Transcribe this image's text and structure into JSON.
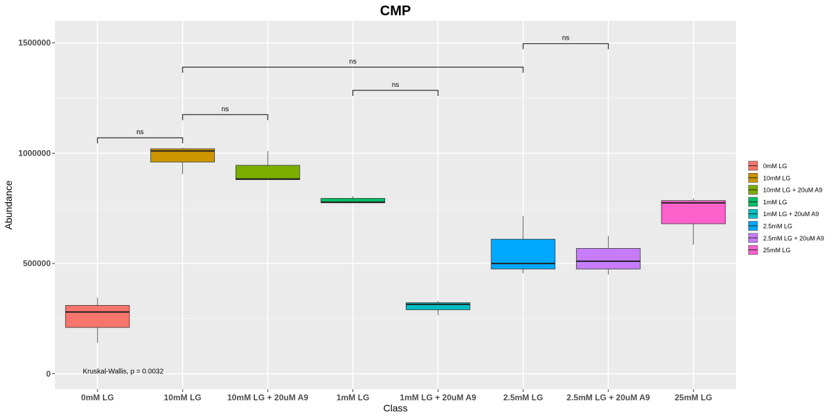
{
  "chart_data": {
    "type": "box",
    "title": "CMP",
    "xlabel": "Class",
    "ylabel": "Abundance",
    "ylim": [
      -70000,
      1600000
    ],
    "yticks": [
      0,
      500000,
      1000000,
      1500000
    ],
    "ytick_labels": [
      "0",
      "500000",
      "1000000",
      "1500000"
    ],
    "categories": [
      "0mM LG",
      "10mM LG",
      "10mM LG + 20uM A9",
      "1mM LG",
      "1mM LG + 20uM A9",
      "2.5mM LG",
      "2.5mM LG + 20uM A9",
      "25mM LG"
    ],
    "boxes": [
      {
        "name": "0mM LG",
        "color": "#F8766D",
        "min": 140000,
        "q1": 210000,
        "median": 280000,
        "q3": 310000,
        "max": 345000
      },
      {
        "name": "10mM LG",
        "color": "#CD9600",
        "min": 905000,
        "q1": 960000,
        "median": 1010000,
        "q3": 1020000,
        "max": 1025000
      },
      {
        "name": "10mM LG + 20uM A9",
        "color": "#7CAE00",
        "min": 880000,
        "q1": 880000,
        "median": 883000,
        "q3": 945000,
        "max": 1010000
      },
      {
        "name": "1mM LG",
        "color": "#00BE67",
        "min": 775000,
        "q1": 775000,
        "median": 778000,
        "q3": 795000,
        "max": 805000
      },
      {
        "name": "1mM LG + 20uM A9",
        "color": "#00BFC4",
        "min": 265000,
        "q1": 290000,
        "median": 315000,
        "q3": 322000,
        "max": 330000
      },
      {
        "name": "2.5mM LG",
        "color": "#00A9FF",
        "min": 455000,
        "q1": 475000,
        "median": 500000,
        "q3": 610000,
        "max": 715000
      },
      {
        "name": "2.5mM LG + 20uM A9",
        "color": "#C77CFF",
        "min": 450000,
        "q1": 475000,
        "median": 510000,
        "q3": 568000,
        "max": 625000
      },
      {
        "name": "25mM LG",
        "color": "#FF61CC",
        "min": 585000,
        "q1": 680000,
        "median": 775000,
        "q3": 785000,
        "max": 795000
      }
    ],
    "comparisons": [
      {
        "from": 0,
        "to": 1,
        "y": 1070000,
        "label": "ns"
      },
      {
        "from": 1,
        "to": 2,
        "y": 1175000,
        "label": "ns"
      },
      {
        "from": 3,
        "to": 4,
        "y": 1285000,
        "label": "ns"
      },
      {
        "from": 1,
        "to": 5,
        "y": 1390000,
        "label": "ns"
      },
      {
        "from": 5,
        "to": 6,
        "y": 1497000,
        "label": "ns"
      }
    ],
    "annotation": {
      "text": "Kruskal-Wallis, p = 0.0032",
      "x_category": 0,
      "y": 10000
    },
    "legend_position": "right",
    "grid": true
  }
}
